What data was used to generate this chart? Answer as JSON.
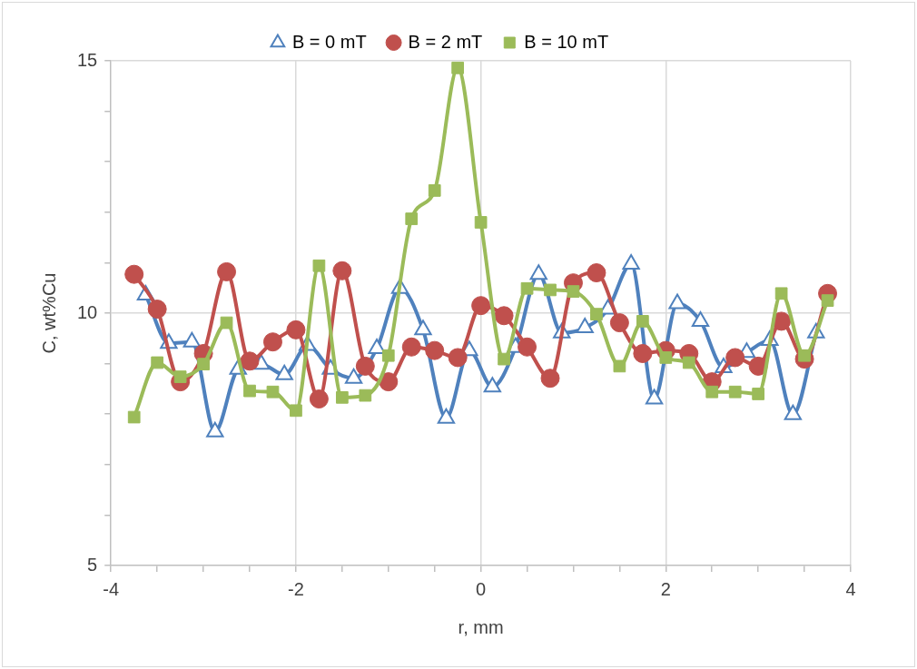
{
  "chart_data": {
    "type": "line",
    "xlabel": "r, mm",
    "ylabel": "C, wt%Cu",
    "xlim": [
      -4,
      4
    ],
    "ylim": [
      5,
      15
    ],
    "xticks": [
      -4,
      {
        "value": -3.5,
        "label": null
      },
      {
        "value": -3,
        "label": null
      },
      {
        "value": -2.5,
        "label": null
      },
      -2,
      {
        "value": -1.5,
        "label": null
      },
      {
        "value": -1,
        "label": null
      },
      {
        "value": -0.5,
        "label": null
      },
      0,
      {
        "value": 0.5,
        "label": null
      },
      {
        "value": 1,
        "label": null
      },
      {
        "value": 1.5,
        "label": null
      },
      2,
      {
        "value": 2.5,
        "label": null
      },
      {
        "value": 3,
        "label": null
      },
      {
        "value": 3.5,
        "label": null
      },
      4
    ],
    "yticks": [
      5,
      {
        "value": 6,
        "label": null
      },
      {
        "value": 7,
        "label": null
      },
      {
        "value": 8,
        "label": null
      },
      {
        "value": 9,
        "label": null
      },
      10,
      {
        "value": 11,
        "label": null
      },
      {
        "value": 12,
        "label": null
      },
      {
        "value": 13,
        "label": null
      },
      {
        "value": 14,
        "label": null
      },
      15
    ],
    "grid": true,
    "legend": "top",
    "series": [
      {
        "name": "B = 0 mT",
        "color": "#4f81bd",
        "marker": "triangle",
        "x": [
          -3.625,
          -3.375,
          -3.125,
          -2.875,
          -2.625,
          -2.375,
          -2.125,
          -1.875,
          -1.625,
          -1.375,
          -1.125,
          -0.875,
          -0.625,
          -0.375,
          -0.125,
          0.125,
          0.375,
          0.625,
          0.875,
          1.125,
          1.375,
          1.625,
          1.875,
          2.125,
          2.375,
          2.625,
          2.875,
          3.125,
          3.375,
          3.625
        ],
        "values": [
          10.36,
          9.4,
          9.43,
          7.65,
          8.89,
          8.99,
          8.78,
          9.36,
          8.89,
          8.71,
          9.3,
          10.49,
          9.67,
          7.92,
          9.26,
          8.54,
          9.32,
          10.77,
          9.61,
          9.71,
          10.08,
          10.97,
          8.3,
          10.19,
          9.84,
          8.92,
          9.22,
          9.46,
          7.99,
          9.61
        ]
      },
      {
        "name": "B = 2 mT",
        "color": "#c0504d",
        "marker": "circle",
        "x": [
          -3.75,
          -3.5,
          -3.25,
          -3,
          -2.75,
          -2.5,
          -2.25,
          -2,
          -1.75,
          -1.5,
          -1.25,
          -1,
          -0.75,
          -0.5,
          -0.25,
          0,
          0.25,
          0.5,
          0.75,
          1,
          1.25,
          1.5,
          1.75,
          2,
          2.25,
          2.5,
          2.75,
          3,
          3.25,
          3.5,
          3.75
        ],
        "values": [
          10.77,
          10.08,
          8.64,
          9.2,
          10.82,
          9.05,
          9.43,
          9.67,
          8.3,
          10.84,
          8.95,
          8.64,
          9.33,
          9.26,
          9.12,
          10.15,
          9.95,
          9.33,
          8.71,
          10.6,
          10.8,
          9.81,
          9.2,
          9.26,
          9.2,
          8.64,
          9.12,
          8.95,
          9.84,
          9.09,
          10.39
        ]
      },
      {
        "name": "B = 10 mT",
        "color": "#9bbb59",
        "marker": "square",
        "x": [
          -3.75,
          -3.5,
          -3.25,
          -3,
          -2.75,
          -2.5,
          -2.25,
          -2,
          -1.75,
          -1.5,
          -1.25,
          -1,
          -0.75,
          -0.5,
          -0.25,
          0,
          0.25,
          0.5,
          0.75,
          1,
          1.25,
          1.5,
          1.75,
          2,
          2.25,
          2.5,
          2.75,
          3,
          3.25,
          3.5,
          3.75
        ],
        "values": [
          7.94,
          9.02,
          8.74,
          8.99,
          9.81,
          8.46,
          8.44,
          8.07,
          10.94,
          8.33,
          8.37,
          9.16,
          11.87,
          12.43,
          14.86,
          11.8,
          9.09,
          10.49,
          10.46,
          10.43,
          9.98,
          8.95,
          9.84,
          9.12,
          9.02,
          8.44,
          8.44,
          8.4,
          10.39,
          9.16,
          10.25
        ]
      }
    ]
  }
}
